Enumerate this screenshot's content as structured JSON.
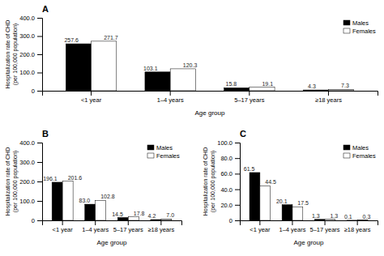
{
  "chart_data": [
    {
      "type": "bar",
      "title": "A",
      "categories": [
        "<1 year",
        "1–4 years",
        "5–17 years",
        "≥18 years"
      ],
      "series": [
        {
          "name": "Males",
          "color": "#000000",
          "values": [
            257.6,
            103.1,
            15.8,
            4.3
          ]
        },
        {
          "name": "Females",
          "color": "#ffffff",
          "colors": [
            "#ffffff",
            "#ffffff",
            "#ffffff",
            "#c8c8c8"
          ],
          "values": [
            271.7,
            120.3,
            19.1,
            7.3
          ]
        }
      ],
      "xlabel": "Age group",
      "ylabel": "Hospitalization rate of CHD\n(per 100,000 population)",
      "ylim": [
        0,
        400
      ],
      "yticks": [
        0,
        {
          "value": 100,
          "label": "100.0"
        },
        {
          "value": 200,
          "label": "200.0"
        },
        {
          "value": 300,
          "label": "300.0"
        },
        {
          "value": 400,
          "label": "400.0"
        }
      ],
      "data_labels": true,
      "legend": "upper right",
      "grid": false
    },
    {
      "type": "bar",
      "title": "B",
      "categories": [
        "<1 year",
        "1–4 years",
        "5–17 years",
        "≥18 years"
      ],
      "series": [
        {
          "name": "Males",
          "color": "#000000",
          "values": [
            196.1,
            83.0,
            14.5,
            4.2
          ],
          "value_labels": [
            "196.1",
            "83.0",
            "14.5",
            "4.2"
          ]
        },
        {
          "name": "Females",
          "color": "#ffffff",
          "colors": [
            "#ffffff",
            "#ffffff",
            "#ffffff",
            "#c8c8c8"
          ],
          "values": [
            201.6,
            102.8,
            17.8,
            7.0
          ],
          "value_labels": [
            "201.6",
            "102.8",
            "17.8",
            "7.0"
          ]
        }
      ],
      "xlabel": "Age group",
      "ylabel": "Hospitalization rate of CHD\n(per 100,000 population)",
      "ylim": [
        0,
        400
      ],
      "yticks": [
        0,
        {
          "value": 100,
          "label": "100.0"
        },
        {
          "value": 200,
          "label": "200.0"
        },
        {
          "value": 300,
          "label": "300.0"
        },
        {
          "value": 400,
          "label": "400.0"
        }
      ],
      "data_labels": true,
      "legend": "upper right",
      "grid": false
    },
    {
      "type": "bar",
      "title": "C",
      "categories": [
        "<1 year",
        "1–4 years",
        "5–17 years",
        "≥18 years"
      ],
      "series": [
        {
          "name": "Males",
          "color": "#000000",
          "values": [
            61.5,
            20.1,
            1.3,
            0.1
          ]
        },
        {
          "name": "Females",
          "color": "#ffffff",
          "colors": [
            "#ffffff",
            "#ffffff",
            "#ffffff",
            "#c8c8c8"
          ],
          "values": [
            44.5,
            17.5,
            1.3,
            0.3
          ]
        }
      ],
      "xlabel": "Age group",
      "ylabel": "Hospitalization rate of CHD\n(per 100,000 population)",
      "ylim": [
        0,
        100
      ],
      "yticks": [
        0,
        {
          "value": 20,
          "label": "20.0"
        },
        {
          "value": 40,
          "label": "40.0"
        },
        {
          "value": 60,
          "label": "60.0"
        },
        {
          "value": 80,
          "label": "80.0"
        },
        {
          "value": 100,
          "label": "100.0"
        }
      ],
      "data_labels": true,
      "legend": "upper right",
      "grid": false
    }
  ]
}
